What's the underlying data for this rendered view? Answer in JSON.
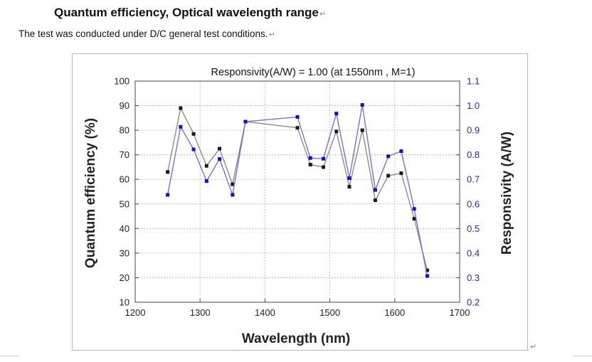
{
  "document": {
    "title": "Quantum efficiency, Optical wavelength range",
    "subtitle": "The test was conducted under D/C general test conditions.",
    "para_mark": "↵"
  },
  "colors": {
    "qe_series": "#1a1a1a",
    "qe_line": "#8c8c8c",
    "resp_series": "#1010c8",
    "resp_line": "#7373c8",
    "grid": "#b0b0b0",
    "axis": "#444444"
  },
  "chart_data": {
    "type": "line",
    "title": "Responsivity(A/W) = 1.00 (at 1550nm , M=1)",
    "xlabel": "Wavelength (nm)",
    "ylabel": "Quantum efficiency (%)",
    "y2label": "Responsivity (A/W)",
    "xlim": [
      1200,
      1700
    ],
    "ylim": [
      10,
      100
    ],
    "y2lim": [
      0.2,
      1.1
    ],
    "grid": true,
    "x_ticks": [
      "1200",
      "1300",
      "1400",
      "1500",
      "1600",
      "1700"
    ],
    "y_ticks": [
      "10",
      "20",
      "30",
      "40",
      "50",
      "60",
      "70",
      "80",
      "90",
      "100"
    ],
    "y2_ticks": [
      "0.2",
      "0.3",
      "0.4",
      "0.5",
      "0.6",
      "0.7",
      "0.8",
      "0.9",
      "1.0",
      "1.1"
    ],
    "series": [
      {
        "name": "Quantum efficiency",
        "axis": "left",
        "x": [
          1250,
          1270,
          1290,
          1310,
          1330,
          1350,
          1370,
          1450,
          1470,
          1490,
          1510,
          1530,
          1550,
          1570,
          1590,
          1610,
          1630,
          1650
        ],
        "values": [
          63,
          89,
          78.5,
          65.5,
          72.5,
          58,
          83.5,
          81,
          66,
          65,
          79.5,
          57,
          80,
          51.5,
          61.5,
          62.5,
          44,
          23
        ]
      },
      {
        "name": "Responsivity",
        "axis": "right",
        "x": [
          1250,
          1270,
          1290,
          1310,
          1330,
          1350,
          1370,
          1450,
          1470,
          1490,
          1510,
          1530,
          1550,
          1570,
          1590,
          1610,
          1630,
          1650
        ],
        "values": [
          0.637,
          0.914,
          0.822,
          0.693,
          0.783,
          0.637,
          0.935,
          0.954,
          0.787,
          0.784,
          0.968,
          0.705,
          1.003,
          0.657,
          0.794,
          0.815,
          0.58,
          0.307
        ]
      }
    ]
  }
}
